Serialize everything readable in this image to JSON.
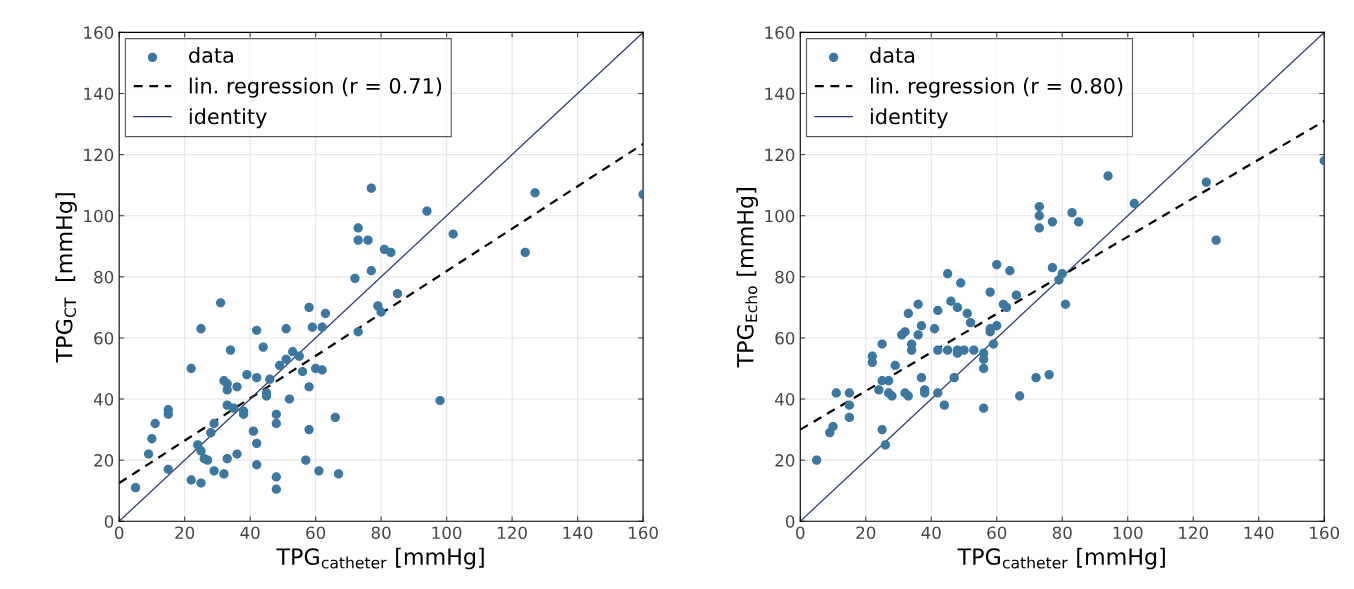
{
  "chart_data": [
    {
      "type": "scatter",
      "xlabel": "TPG$_{catheter}$ [mmHg]",
      "ylabel": "TPG$_{CT}$  [mmHg]",
      "xlim": [
        0,
        160
      ],
      "ylim": [
        0,
        160
      ],
      "xticks": [
        0,
        20,
        40,
        60,
        80,
        100,
        120,
        140,
        160
      ],
      "yticks": [
        0,
        20,
        40,
        60,
        80,
        100,
        120,
        140,
        160
      ],
      "grid": true,
      "legend": "top left",
      "series": [
        {
          "name": "data",
          "marker": "circle",
          "color": "#3b77a0",
          "x": [
            5,
            9,
            10,
            11,
            15,
            15,
            15,
            22,
            22,
            24,
            25,
            25,
            25,
            26,
            27,
            28,
            29,
            29,
            31,
            32,
            33,
            33,
            32,
            33,
            34,
            33,
            35,
            36,
            36,
            38,
            38,
            39,
            41,
            42,
            42,
            42,
            42,
            44,
            45,
            45,
            46,
            48,
            48,
            48,
            48,
            49,
            51,
            51,
            52,
            53,
            55,
            56,
            57,
            58,
            58,
            58,
            59,
            60,
            61,
            62,
            62,
            63,
            66,
            67,
            72,
            73,
            73,
            73,
            76,
            77,
            77,
            79,
            80,
            81,
            83,
            85,
            94,
            98,
            102,
            124,
            127,
            160
          ],
          "values": [
            11,
            22,
            27,
            32,
            35,
            36.5,
            17,
            50,
            13.5,
            25,
            12.5,
            63,
            23,
            20.5,
            20,
            29,
            16.5,
            32,
            71.5,
            46,
            45,
            43,
            15.5,
            20.5,
            56,
            38,
            37,
            44,
            22,
            35,
            36,
            48,
            29.5,
            62.5,
            25.5,
            47,
            18.5,
            57,
            42,
            41,
            46.5,
            35,
            14.5,
            10.5,
            32,
            51,
            63,
            53,
            40,
            55.5,
            54,
            49,
            20,
            70,
            44,
            30,
            63.5,
            50,
            16.5,
            49.5,
            63.5,
            68,
            34,
            15.5,
            79.5,
            96,
            92,
            62,
            92,
            109,
            82,
            70.5,
            68.5,
            89,
            88,
            74.5,
            101.5,
            39.5,
            94,
            88,
            107.5,
            107
          ]
        },
        {
          "name": "lin. regression (r = 0.71)",
          "type": "line",
          "line_style": "dashed",
          "color": "#000000",
          "x": [
            0,
            160
          ],
          "values": [
            12.5,
            123.5
          ]
        },
        {
          "name": "identity",
          "type": "line",
          "line_style": "solid",
          "color": "#2b3a6b",
          "x": [
            0,
            160
          ],
          "values": [
            0,
            160
          ]
        }
      ]
    },
    {
      "type": "scatter",
      "xlabel": "TPG$_{catheter}$ [mmHg]",
      "ylabel": "TPG$_{Echo}$ [mmHg]",
      "xlim": [
        0,
        160
      ],
      "ylim": [
        0,
        160
      ],
      "xticks": [
        0,
        20,
        40,
        60,
        80,
        100,
        120,
        140,
        160
      ],
      "yticks": [
        0,
        20,
        40,
        60,
        80,
        100,
        120,
        140,
        160
      ],
      "grid": true,
      "legend": "top left",
      "series": [
        {
          "name": "data",
          "marker": "circle",
          "color": "#3b77a0",
          "x": [
            5,
            9,
            10,
            11,
            15,
            15,
            15,
            22,
            22,
            25,
            25,
            24,
            26,
            25,
            27,
            27,
            28,
            29,
            31,
            32,
            32,
            33,
            33,
            34,
            34,
            36,
            36,
            37,
            37,
            38,
            38,
            41,
            42,
            42,
            42,
            44,
            45,
            45,
            46,
            47,
            48,
            48,
            48,
            49,
            50,
            51,
            52,
            53,
            56,
            56,
            56,
            56,
            58,
            58,
            58,
            59,
            60,
            60,
            62,
            63,
            64,
            66,
            67,
            72,
            73,
            73,
            73,
            76,
            77,
            77,
            79,
            80,
            81,
            83,
            85,
            94,
            102,
            124,
            127,
            160
          ],
          "values": [
            20,
            29,
            31,
            42,
            42,
            38,
            34,
            54,
            52,
            46,
            30,
            43,
            25,
            58,
            42,
            46,
            41,
            51,
            61,
            62,
            42,
            41,
            68,
            56,
            58,
            71,
            61,
            47,
            64,
            43,
            42,
            63,
            69,
            56,
            42,
            38,
            81,
            56,
            72,
            47,
            56,
            55,
            70,
            78,
            56,
            68,
            65,
            56,
            55,
            53,
            50,
            37,
            75,
            63,
            62,
            58,
            64,
            84,
            71,
            70,
            82,
            74,
            41,
            47,
            103,
            100,
            96,
            48,
            83,
            98,
            79,
            81,
            71,
            101,
            98,
            113,
            104,
            111,
            92,
            118
          ]
        },
        {
          "name": "lin. regression (r = 0.80)",
          "type": "line",
          "line_style": "dashed",
          "color": "#000000",
          "x": [
            0,
            160
          ],
          "values": [
            30,
            131
          ]
        },
        {
          "name": "identity",
          "type": "line",
          "line_style": "solid",
          "color": "#2b3a6b",
          "x": [
            0,
            160
          ],
          "values": [
            0,
            160
          ]
        }
      ]
    }
  ]
}
